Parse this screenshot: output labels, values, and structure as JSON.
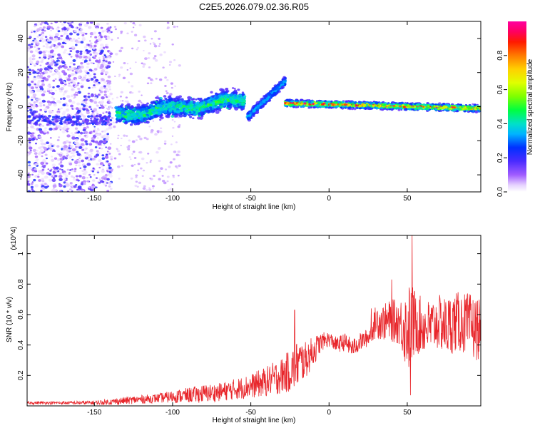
{
  "title": "C2E5.2026.079.02.36.R05",
  "chart_data": [
    {
      "type": "heatmap",
      "name": "spectrogram",
      "xlabel": "Height of straight line (km)",
      "ylabel": "Frequency (Hz)",
      "xlim": [
        -193,
        97
      ],
      "ylim": [
        -50,
        50
      ],
      "xticks": [
        -150,
        -100,
        -50,
        0,
        50
      ],
      "yticks": [
        -40,
        -20,
        0,
        20,
        40
      ],
      "colorbar": {
        "label": "Normalized spectral amplitude",
        "range": [
          0,
          1
        ],
        "ticks": [
          0.0,
          0.2,
          0.4,
          0.6,
          0.8
        ],
        "tick_labels": [
          "0.0",
          "0.2",
          "0.4",
          "0.6",
          "0.8"
        ]
      },
      "features": [
        {
          "name": "diffuse noise region",
          "x_range": [
            -193,
            -140
          ],
          "freq_range": [
            -50,
            50
          ],
          "amplitude": 0.15
        },
        {
          "name": "scattered weak echoes",
          "x_range": [
            -140,
            -95
          ],
          "freq_range": [
            -50,
            50
          ],
          "amplitude": 0.05
        },
        {
          "name": "broad echo band",
          "x_range": [
            -135,
            -55
          ],
          "freq_center": [
            -5,
            4
          ],
          "amplitude": 0.3
        },
        {
          "name": "rising streak",
          "x_range": [
            -52,
            -28
          ],
          "freq_start": -6,
          "freq_end": 15,
          "amplitude": 0.3
        },
        {
          "name": "narrow line",
          "x_range": [
            -28,
            97
          ],
          "freq_start": 2,
          "freq_end": -1,
          "amplitude": 0.8
        }
      ]
    },
    {
      "type": "line",
      "name": "snr",
      "xlabel": "Height of straight line (km)",
      "ylabel": "SNR (10 * v/v)",
      "y_multiplier": "(x10^4)",
      "xlim": [
        -193,
        97
      ],
      "ylim": [
        0,
        1.12
      ],
      "xticks": [
        -150,
        -100,
        -50,
        0,
        50
      ],
      "yticks": [
        0.2,
        0.4,
        0.6,
        0.8,
        1.0
      ],
      "ytick_labels": [
        "0.2",
        "0.4",
        "0.6",
        "0.8",
        "1"
      ],
      "series": [
        {
          "name": "SNR",
          "color": "#e8262b",
          "x_points": [
            -193,
            -170,
            -150,
            -140,
            -130,
            -110,
            -100,
            -90,
            -80,
            -70,
            -60,
            -50,
            -40,
            -30,
            -25,
            -22,
            -20,
            -15,
            -10,
            -5,
            0,
            5,
            10,
            15,
            20,
            25,
            28,
            30,
            35,
            40,
            45,
            50,
            52,
            55,
            60,
            65,
            70,
            75,
            80,
            85,
            90,
            97
          ],
          "mean": [
            0.02,
            0.02,
            0.02,
            0.025,
            0.035,
            0.05,
            0.06,
            0.07,
            0.08,
            0.09,
            0.11,
            0.13,
            0.16,
            0.2,
            0.23,
            0.25,
            0.28,
            0.3,
            0.36,
            0.42,
            0.44,
            0.4,
            0.42,
            0.38,
            0.42,
            0.45,
            0.5,
            0.56,
            0.55,
            0.56,
            0.55,
            0.5,
            0.52,
            0.55,
            0.52,
            0.52,
            0.55,
            0.52,
            0.55,
            0.55,
            0.52,
            0.5
          ],
          "amplitude": [
            0.01,
            0.01,
            0.015,
            0.02,
            0.025,
            0.03,
            0.04,
            0.05,
            0.06,
            0.06,
            0.07,
            0.08,
            0.1,
            0.12,
            0.14,
            0.15,
            0.16,
            0.12,
            0.1,
            0.06,
            0.05,
            0.05,
            0.06,
            0.06,
            0.06,
            0.06,
            0.07,
            0.12,
            0.12,
            0.14,
            0.15,
            0.28,
            0.3,
            0.22,
            0.18,
            0.18,
            0.18,
            0.2,
            0.2,
            0.2,
            0.22,
            0.2
          ],
          "peaks": [
            {
              "x": -22,
              "y": 0.63
            },
            {
              "x": 53,
              "y": 1.12
            },
            {
              "x": 52,
              "y": 0.07
            },
            {
              "x": 27,
              "y": 0.64
            },
            {
              "x": 40,
              "y": 0.83
            }
          ]
        }
      ]
    }
  ]
}
